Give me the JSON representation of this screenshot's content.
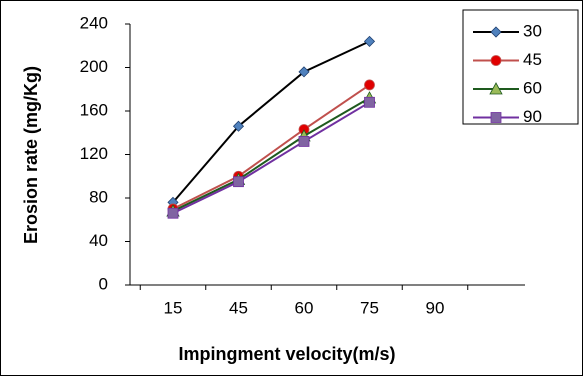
{
  "chart_data": {
    "type": "line",
    "x_label": "Impingment velocity(m/s)",
    "y_label": "Erosion rate (mg/Kg)",
    "categories": [
      "15",
      "45",
      "60",
      "75",
      "90"
    ],
    "series": [
      {
        "name": "30",
        "color": "#000000",
        "marker": "diamond",
        "marker_color": "#4f81bd",
        "values": [
          76,
          146,
          196,
          224,
          null
        ]
      },
      {
        "name": "45",
        "color": "#c0504d",
        "marker": "circle",
        "marker_color": "#e00000",
        "values": [
          70,
          100,
          143,
          184,
          null
        ]
      },
      {
        "name": "60",
        "color": "#1e5a1e",
        "marker": "triangle",
        "marker_color": "#9bbb59",
        "values": [
          68,
          97,
          137,
          172,
          null
        ]
      },
      {
        "name": "90",
        "color": "#7030a0",
        "marker": "square",
        "marker_color": "#8064a2",
        "values": [
          66,
          95,
          132,
          168,
          null
        ]
      }
    ],
    "ylim": [
      0,
      240
    ],
    "yticks": [
      0,
      40,
      80,
      120,
      160,
      200,
      240
    ],
    "legend": "upper right"
  }
}
